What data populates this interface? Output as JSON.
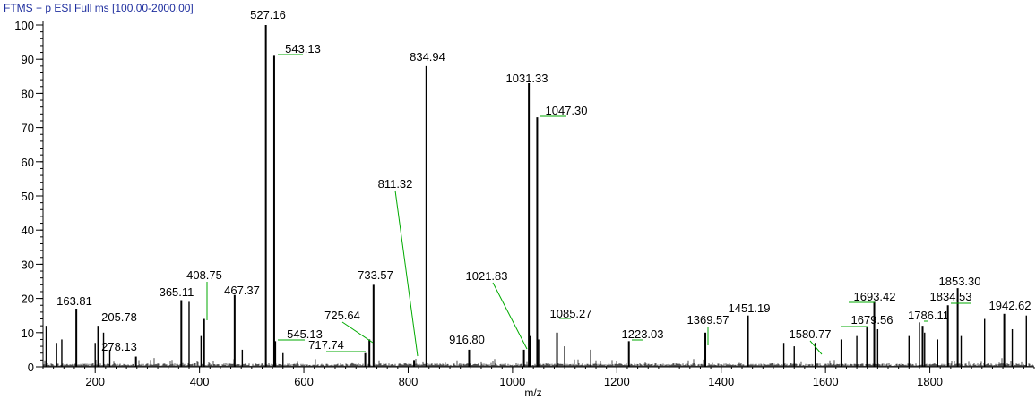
{
  "chart_data": {
    "type": "bar",
    "title": "FTMS + p ESI Full ms [100.00-2000.00]",
    "xlabel": "m/z",
    "ylabel": "",
    "xlim": [
      100,
      2000
    ],
    "ylim": [
      0,
      100
    ],
    "x_ticks": [
      200,
      400,
      600,
      800,
      1000,
      1200,
      1400,
      1600,
      1800
    ],
    "y_ticks": [
      0,
      10,
      20,
      30,
      40,
      50,
      60,
      70,
      80,
      90,
      100
    ],
    "labeled_peaks": [
      {
        "mz": 163.81,
        "label": "163.81",
        "intensity": 17
      },
      {
        "mz": 205.78,
        "label": "205.78",
        "intensity": 12
      },
      {
        "mz": 278.13,
        "label": "278.13",
        "intensity": 3
      },
      {
        "mz": 365.11,
        "label": "365.11",
        "intensity": 19.5
      },
      {
        "mz": 408.75,
        "label": "408.75",
        "intensity": 14
      },
      {
        "mz": 467.37,
        "label": "467.37",
        "intensity": 21
      },
      {
        "mz": 527.16,
        "label": "527.16",
        "intensity": 100
      },
      {
        "mz": 543.13,
        "label": "543.13",
        "intensity": 91
      },
      {
        "mz": 545.13,
        "label": "545.13",
        "intensity": 7.5
      },
      {
        "mz": 717.74,
        "label": "717.74",
        "intensity": 4
      },
      {
        "mz": 725.64,
        "label": "725.64",
        "intensity": 8
      },
      {
        "mz": 733.57,
        "label": "733.57",
        "intensity": 24
      },
      {
        "mz": 811.32,
        "label": "811.32",
        "intensity": 2
      },
      {
        "mz": 834.94,
        "label": "834.94",
        "intensity": 88
      },
      {
        "mz": 916.8,
        "label": "916.80",
        "intensity": 5
      },
      {
        "mz": 1021.83,
        "label": "1021.83",
        "intensity": 5
      },
      {
        "mz": 1031.33,
        "label": "1031.33",
        "intensity": 83
      },
      {
        "mz": 1047.3,
        "label": "1047.30",
        "intensity": 73
      },
      {
        "mz": 1085.27,
        "label": "1085.27",
        "intensity": 10
      },
      {
        "mz": 1223.03,
        "label": "1223.03",
        "intensity": 7.5
      },
      {
        "mz": 1369.57,
        "label": "1369.57",
        "intensity": 10
      },
      {
        "mz": 1451.19,
        "label": "1451.19",
        "intensity": 15
      },
      {
        "mz": 1580.77,
        "label": "1580.77",
        "intensity": 7
      },
      {
        "mz": 1679.56,
        "label": "1679.56",
        "intensity": 11.5
      },
      {
        "mz": 1693.42,
        "label": "1693.42",
        "intensity": 19
      },
      {
        "mz": 1786.11,
        "label": "1786.11",
        "intensity": 12
      },
      {
        "mz": 1834.53,
        "label": "1834.53",
        "intensity": 18
      },
      {
        "mz": 1853.3,
        "label": "1853.30",
        "intensity": 23
      },
      {
        "mz": 1942.62,
        "label": "1942.62",
        "intensity": 15.5
      }
    ],
    "minor_peaks": [
      {
        "mz": 106,
        "intensity": 12
      },
      {
        "mz": 126,
        "intensity": 7
      },
      {
        "mz": 136,
        "intensity": 8
      },
      {
        "mz": 200,
        "intensity": 7
      },
      {
        "mz": 216,
        "intensity": 10
      },
      {
        "mz": 228,
        "intensity": 5
      },
      {
        "mz": 380,
        "intensity": 19
      },
      {
        "mz": 403,
        "intensity": 9
      },
      {
        "mz": 482,
        "intensity": 5
      },
      {
        "mz": 560,
        "intensity": 4
      },
      {
        "mz": 1034,
        "intensity": 9
      },
      {
        "mz": 1050,
        "intensity": 8
      },
      {
        "mz": 1100,
        "intensity": 6
      },
      {
        "mz": 1150,
        "intensity": 5
      },
      {
        "mz": 1520,
        "intensity": 7
      },
      {
        "mz": 1540,
        "intensity": 6
      },
      {
        "mz": 1630,
        "intensity": 8
      },
      {
        "mz": 1660,
        "intensity": 9
      },
      {
        "mz": 1700,
        "intensity": 11
      },
      {
        "mz": 1760,
        "intensity": 9
      },
      {
        "mz": 1780,
        "intensity": 13
      },
      {
        "mz": 1790,
        "intensity": 10
      },
      {
        "mz": 1815,
        "intensity": 8
      },
      {
        "mz": 1860,
        "intensity": 9
      },
      {
        "mz": 1905,
        "intensity": 14
      },
      {
        "mz": 1958,
        "intensity": 11
      },
      {
        "mz": 1985,
        "intensity": 15
      }
    ],
    "grid": false,
    "legend": "none",
    "colors": {
      "title": "#1f2f9f",
      "peaks": "#000000",
      "leader_lines": "#00aa00",
      "axes": "#000000"
    }
  }
}
